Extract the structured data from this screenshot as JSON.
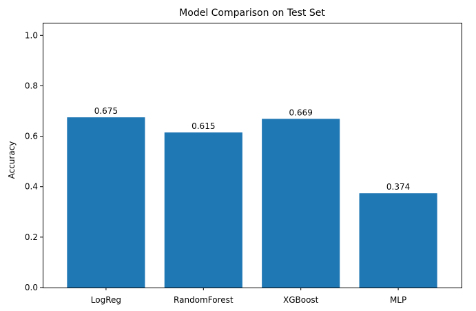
{
  "chart_data": {
    "type": "bar",
    "title": "Model Comparison on Test Set",
    "xlabel": "",
    "ylabel": "Accuracy",
    "categories": [
      "LogReg",
      "RandomForest",
      "XGBoost",
      "MLP"
    ],
    "values": [
      0.675,
      0.615,
      0.669,
      0.374
    ],
    "data_labels": [
      "0.675",
      "0.615",
      "0.669",
      "0.374"
    ],
    "ylim": [
      0,
      1.05
    ],
    "yticks": [
      0.0,
      0.2,
      0.4,
      0.6,
      0.8,
      1.0
    ],
    "ytick_labels": [
      "0.0",
      "0.2",
      "0.4",
      "0.6",
      "0.8",
      "1.0"
    ],
    "bar_color": "#1f77b4",
    "grid": false,
    "legend": "none"
  }
}
